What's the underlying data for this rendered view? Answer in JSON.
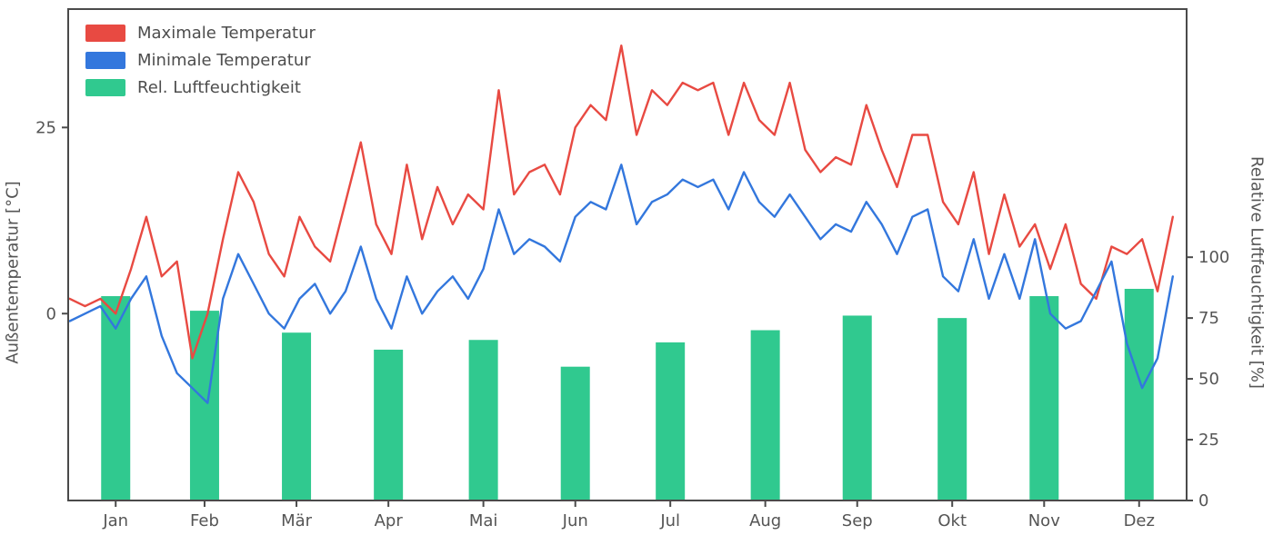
{
  "chart_data": {
    "type": "mixed",
    "title": "",
    "x_axis": {
      "tick_labels": [
        "Jan",
        "Feb",
        "Mär",
        "Apr",
        "Mai",
        "Jun",
        "Jul",
        "Aug",
        "Sep",
        "Okt",
        "Nov",
        "Dez"
      ],
      "tick_positions_day": [
        16,
        45,
        75,
        105,
        136,
        166,
        197,
        228,
        258,
        289,
        319,
        350
      ],
      "range_days": [
        1,
        365
      ],
      "grid": false
    },
    "left_axis": {
      "label": "Außentemperatur [°C]",
      "ticks": [
        0,
        25
      ],
      "ylim": [
        -25.1,
        40.9
      ]
    },
    "right_axis": {
      "label": "Relative Luftfeuchtigkeit [%]",
      "ticks": [
        0,
        25,
        50,
        75,
        100
      ],
      "ylim": [
        0,
        202
      ]
    },
    "series": [
      {
        "name": "Maximale Temperatur",
        "type": "line",
        "axis": "left",
        "color": "#e84a42",
        "x_days": [
          1,
          6,
          11,
          16,
          21,
          26,
          31,
          36,
          41,
          46,
          51,
          56,
          61,
          66,
          71,
          76,
          81,
          86,
          91,
          96,
          101,
          106,
          111,
          116,
          121,
          126,
          131,
          136,
          141,
          146,
          151,
          156,
          161,
          166,
          171,
          176,
          181,
          186,
          191,
          196,
          201,
          206,
          211,
          216,
          221,
          226,
          231,
          236,
          241,
          246,
          251,
          256,
          261,
          266,
          271,
          276,
          281,
          286,
          291,
          296,
          301,
          306,
          311,
          316,
          321,
          326,
          331,
          336,
          341,
          346,
          351,
          356,
          361
        ],
        "values": [
          2,
          1,
          2,
          0,
          6,
          13,
          5,
          7,
          -6,
          0,
          10,
          19,
          15,
          8,
          5,
          13,
          9,
          7,
          15,
          23,
          12,
          8,
          20,
          10,
          17,
          12,
          16,
          14,
          30,
          16,
          19,
          20,
          16,
          25,
          28,
          26,
          36,
          24,
          30,
          28,
          31,
          30,
          31,
          24,
          31,
          26,
          24,
          31,
          22,
          19,
          21,
          20,
          28,
          22,
          17,
          24,
          24,
          15,
          12,
          19,
          8,
          16,
          9,
          12,
          6,
          12,
          4,
          2,
          9,
          8,
          10,
          3,
          13
        ]
      },
      {
        "name": "Minimale Temperatur",
        "type": "line",
        "axis": "left",
        "color": "#3377dd",
        "x_days": [
          1,
          6,
          11,
          16,
          21,
          26,
          31,
          36,
          41,
          46,
          51,
          56,
          61,
          66,
          71,
          76,
          81,
          86,
          91,
          96,
          101,
          106,
          111,
          116,
          121,
          126,
          131,
          136,
          141,
          146,
          151,
          156,
          161,
          166,
          171,
          176,
          181,
          186,
          191,
          196,
          201,
          206,
          211,
          216,
          221,
          226,
          231,
          236,
          241,
          246,
          251,
          256,
          261,
          266,
          271,
          276,
          281,
          286,
          291,
          296,
          301,
          306,
          311,
          316,
          321,
          326,
          331,
          336,
          341,
          346,
          351,
          356,
          361
        ],
        "values": [
          -1,
          0,
          1,
          -2,
          2,
          5,
          -3,
          -8,
          -10,
          -12,
          2,
          8,
          4,
          0,
          -2,
          2,
          4,
          0,
          3,
          9,
          2,
          -2,
          5,
          0,
          3,
          5,
          2,
          6,
          14,
          8,
          10,
          9,
          7,
          13,
          15,
          14,
          20,
          12,
          15,
          16,
          18,
          17,
          18,
          14,
          19,
          15,
          13,
          16,
          13,
          10,
          12,
          11,
          15,
          12,
          8,
          13,
          14,
          5,
          3,
          10,
          2,
          8,
          2,
          10,
          0,
          -2,
          -1,
          3,
          7,
          -4,
          -10,
          -6,
          5
        ]
      },
      {
        "name": "Rel. Luftfeuchtigkeit",
        "type": "bar",
        "axis": "right",
        "color": "#30c98f",
        "categories": [
          "Jan",
          "Feb",
          "Mär",
          "Apr",
          "Mai",
          "Jun",
          "Jul",
          "Aug",
          "Sep",
          "Okt",
          "Nov",
          "Dez"
        ],
        "x_days": [
          16,
          45,
          75,
          105,
          136,
          166,
          197,
          228,
          258,
          289,
          319,
          350
        ],
        "values": [
          84,
          78,
          69,
          62,
          66,
          55,
          65,
          70,
          76,
          75,
          84,
          87
        ]
      }
    ],
    "legend": {
      "position": "upper-left",
      "entries": [
        {
          "label": "Maximale Temperatur",
          "color": "#e84a42"
        },
        {
          "label": "Minimale Temperatur",
          "color": "#3377dd"
        },
        {
          "label": "Rel. Luftfeuchtigkeit",
          "color": "#30c98f"
        }
      ]
    }
  },
  "colors": {
    "spine": "#4a4a4a",
    "tick_text": "#555555",
    "background": "#ffffff"
  }
}
